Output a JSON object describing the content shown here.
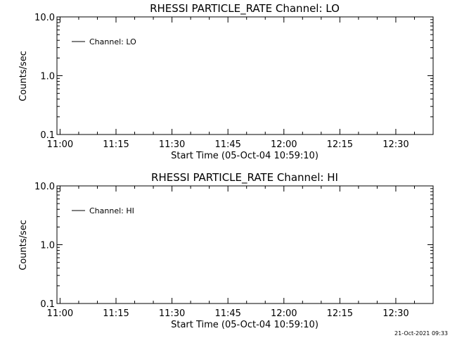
{
  "chart_data": [
    {
      "type": "line",
      "title": "RHESSI PARTICLE_RATE Channel: LO",
      "xlabel": "Start Time (05-Oct-04 10:59:10)",
      "ylabel": "Counts/sec",
      "yscale": "log",
      "ylim": [
        0.1,
        10.0
      ],
      "xlim": [
        "10:59:10",
        "12:40:00"
      ],
      "x_ticks": [
        "11:00",
        "11:15",
        "11:30",
        "11:45",
        "12:00",
        "12:15",
        "12:30"
      ],
      "y_ticks": [
        "0.1",
        "1.0",
        "10.0"
      ],
      "legend": {
        "placement": "top-left",
        "entries": [
          "Channel: LO"
        ]
      },
      "series": [
        {
          "name": "Channel: LO",
          "x": [],
          "y": []
        }
      ]
    },
    {
      "type": "line",
      "title": "RHESSI PARTICLE_RATE Channel: HI",
      "xlabel": "Start Time (05-Oct-04 10:59:10)",
      "ylabel": "Counts/sec",
      "yscale": "log",
      "ylim": [
        0.1,
        10.0
      ],
      "xlim": [
        "10:59:10",
        "12:40:00"
      ],
      "x_ticks": [
        "11:00",
        "11:15",
        "11:30",
        "11:45",
        "12:00",
        "12:15",
        "12:30"
      ],
      "y_ticks": [
        "0.1",
        "1.0",
        "10.0"
      ],
      "legend": {
        "placement": "top-left",
        "entries": [
          "Channel: HI"
        ]
      },
      "series": [
        {
          "name": "Channel: HI",
          "x": [],
          "y": []
        }
      ]
    }
  ],
  "footer": {
    "timestamp": "21-Oct-2021 09:33"
  }
}
